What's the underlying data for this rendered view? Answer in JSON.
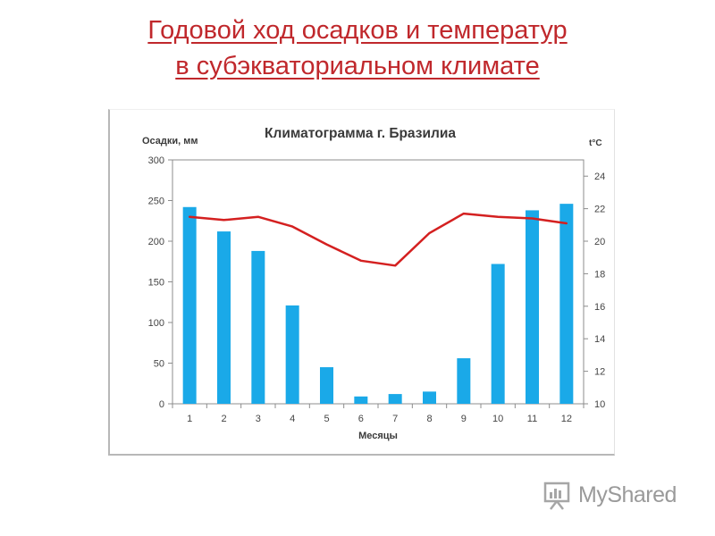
{
  "slide": {
    "title_line1": "Годовой ход осадков и температур",
    "title_line2": "в субэкваториальном климате"
  },
  "watermark": {
    "text": "MyShared",
    "icon": "presentation-board-icon"
  },
  "chart_data": {
    "type": "bar",
    "title": "Климатограмма г. Бразилиа",
    "xlabel": "Месяцы",
    "ylabel": "Осадки, мм",
    "y2label": "t°C",
    "categories": [
      "1",
      "2",
      "3",
      "4",
      "5",
      "6",
      "7",
      "8",
      "9",
      "10",
      "11",
      "12"
    ],
    "ylim": [
      0,
      300
    ],
    "yticks": [
      "0",
      "50",
      "100",
      "150",
      "200",
      "250",
      "300"
    ],
    "y2lim": [
      10,
      25
    ],
    "y2ticks": [
      "10",
      "12",
      "14",
      "16",
      "18",
      "20",
      "22",
      "24"
    ],
    "grid": false,
    "legend": "none",
    "series": [
      {
        "type": "bar",
        "axis": "left",
        "color": "#1aa9e8",
        "values": [
          242,
          212,
          188,
          121,
          45,
          9,
          12,
          15,
          56,
          172,
          238,
          246
        ]
      },
      {
        "type": "line",
        "axis": "right",
        "color": "#d42020",
        "values": [
          21.5,
          21.3,
          21.5,
          20.9,
          19.8,
          18.8,
          18.5,
          20.5,
          21.7,
          21.5,
          21.4,
          21.1
        ]
      }
    ]
  }
}
